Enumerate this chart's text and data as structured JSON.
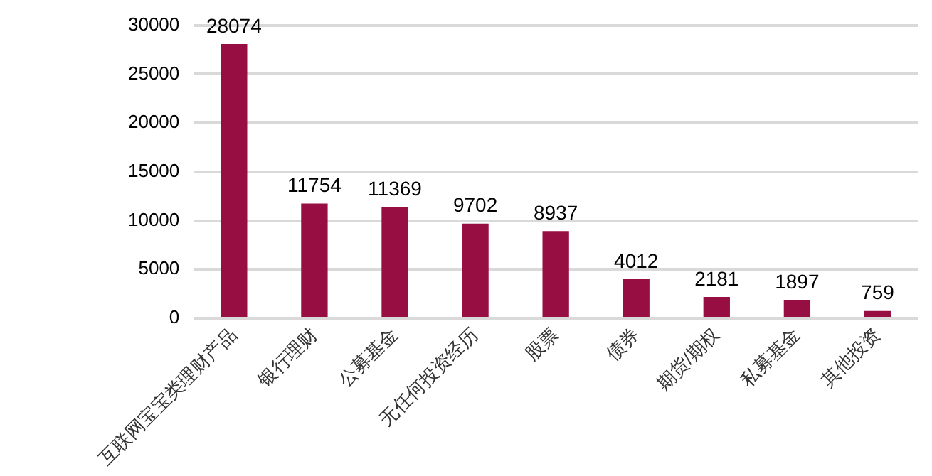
{
  "chart_data": {
    "type": "bar",
    "categories": [
      "互联网宝宝类理财产品",
      "银行理财",
      "公募基金",
      "无任何投资经历",
      "股票",
      "债券",
      "期货/期权",
      "私募基金",
      "其他投资"
    ],
    "values": [
      28074,
      11754,
      11369,
      9702,
      8937,
      4012,
      2181,
      1897,
      759
    ],
    "color": "#970e43",
    "ylim": [
      0,
      30000
    ],
    "yticks": [
      0,
      5000,
      10000,
      15000,
      20000,
      25000,
      30000
    ],
    "grid": "y",
    "data_labels": true,
    "legend": false
  }
}
